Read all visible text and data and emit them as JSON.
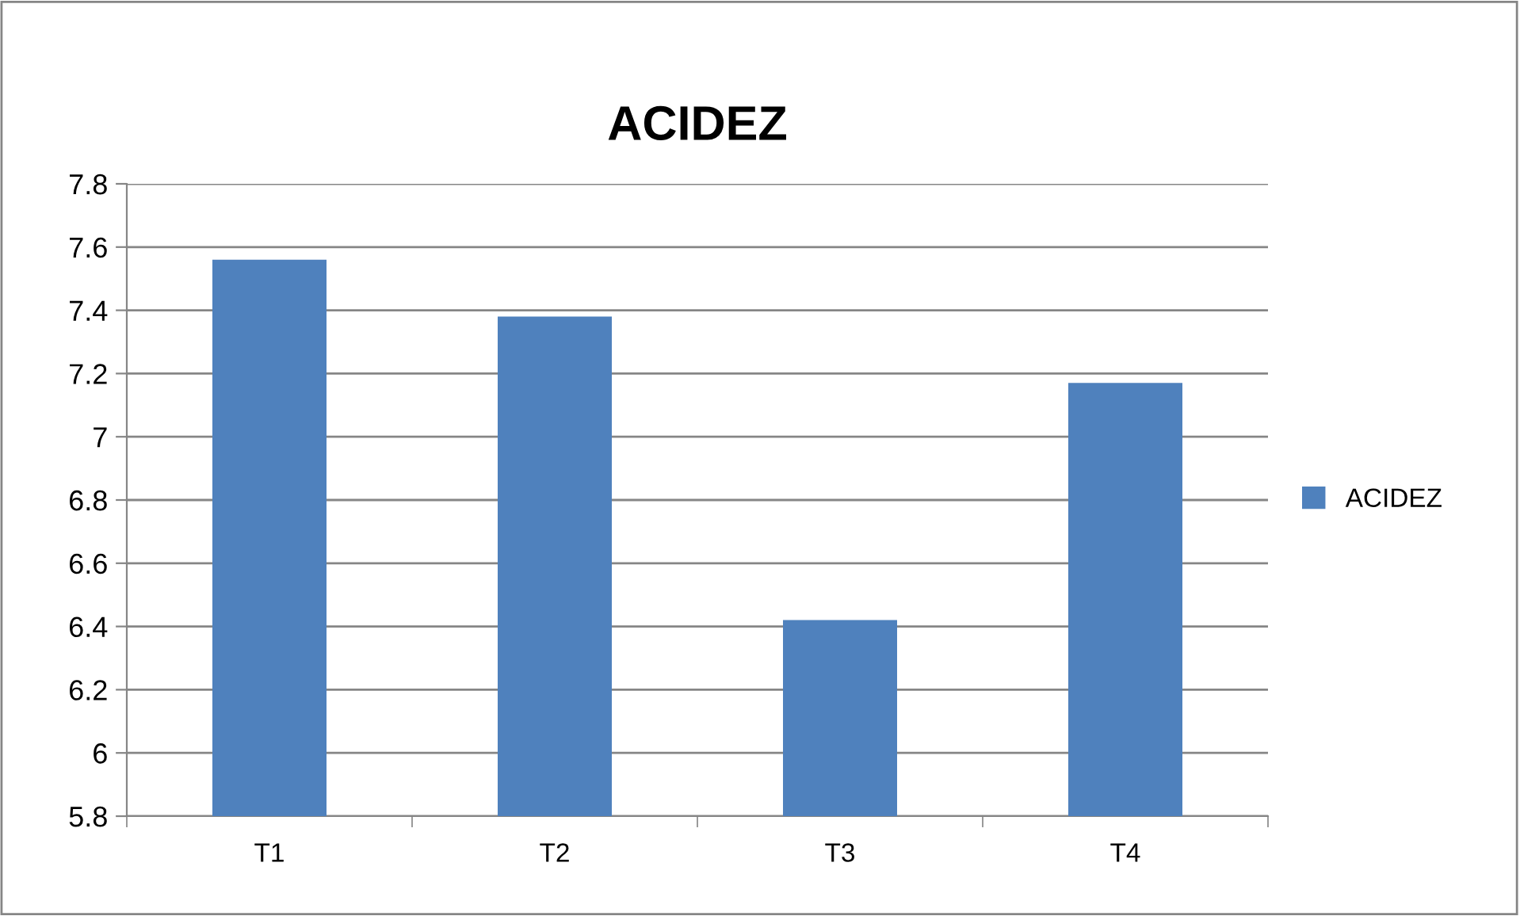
{
  "chart_data": {
    "type": "bar",
    "title": "ACIDEZ",
    "categories": [
      "T1",
      "T2",
      "T3",
      "T4"
    ],
    "series": [
      {
        "name": "ACIDEZ",
        "color": "#4f81bd",
        "values": [
          7.56,
          7.38,
          6.42,
          7.17
        ]
      }
    ],
    "ylim": [
      5.8,
      7.8
    ],
    "yticks": [
      5.8,
      6,
      6.2,
      6.4,
      6.6,
      6.8,
      7,
      7.2,
      7.4,
      7.6,
      7.8
    ],
    "grid": "y",
    "legend": "right"
  }
}
